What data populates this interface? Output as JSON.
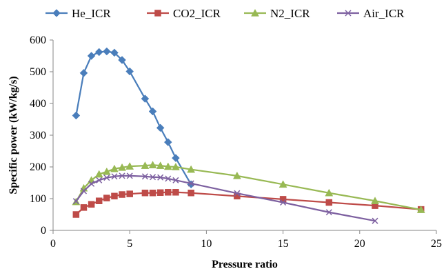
{
  "chart_data": {
    "type": "line",
    "title": "",
    "xlabel": "Pressure ratio",
    "ylabel": "Specific power (kW/kg/s)",
    "xlim": [
      0,
      25
    ],
    "ylim": [
      0,
      600
    ],
    "xticks": [
      0,
      5,
      10,
      15,
      20,
      25
    ],
    "yticks": [
      0,
      100,
      200,
      300,
      400,
      500,
      600
    ],
    "grid": false,
    "legend_position": "top",
    "series": [
      {
        "name": "He_ICR",
        "color": "#4a7ebb",
        "marker": "diamond",
        "points": [
          [
            1.5,
            362
          ],
          [
            2,
            496
          ],
          [
            2.5,
            550
          ],
          [
            3,
            562
          ],
          [
            3.5,
            564
          ],
          [
            4,
            560
          ],
          [
            4.5,
            537
          ],
          [
            5,
            501
          ],
          [
            6,
            415
          ],
          [
            6.5,
            375
          ],
          [
            7,
            323
          ],
          [
            7.5,
            278
          ],
          [
            8,
            228
          ],
          [
            9,
            145
          ]
        ]
      },
      {
        "name": "CO2_ICR",
        "color": "#be4b48",
        "marker": "square",
        "points": [
          [
            1.5,
            50
          ],
          [
            2,
            72
          ],
          [
            2.5,
            82
          ],
          [
            3,
            93
          ],
          [
            3.5,
            102
          ],
          [
            4,
            108
          ],
          [
            4.5,
            113
          ],
          [
            5,
            115
          ],
          [
            6,
            118
          ],
          [
            6.5,
            118
          ],
          [
            7,
            119
          ],
          [
            7.5,
            120
          ],
          [
            8,
            120
          ],
          [
            9,
            118
          ],
          [
            12,
            108
          ],
          [
            15,
            98
          ],
          [
            18,
            88
          ],
          [
            21,
            78
          ],
          [
            24,
            66
          ]
        ]
      },
      {
        "name": "N2_ICR",
        "color": "#98b954",
        "marker": "triangle",
        "points": [
          [
            1.5,
            90
          ],
          [
            2,
            133
          ],
          [
            2.5,
            158
          ],
          [
            3,
            177
          ],
          [
            3.5,
            185
          ],
          [
            4,
            194
          ],
          [
            4.5,
            198
          ],
          [
            5,
            202
          ],
          [
            6,
            204
          ],
          [
            6.5,
            206
          ],
          [
            7,
            204
          ],
          [
            7.5,
            201
          ],
          [
            8,
            200
          ],
          [
            9,
            192
          ],
          [
            12,
            172
          ],
          [
            15,
            145
          ],
          [
            18,
            118
          ],
          [
            21,
            93
          ],
          [
            24,
            65
          ]
        ]
      },
      {
        "name": "Air_ICR",
        "color": "#7d60a0",
        "marker": "x",
        "points": [
          [
            1.5,
            92
          ],
          [
            2,
            124
          ],
          [
            2.5,
            147
          ],
          [
            3,
            158
          ],
          [
            3.5,
            166
          ],
          [
            4,
            170
          ],
          [
            4.5,
            172
          ],
          [
            5,
            172
          ],
          [
            6,
            170
          ],
          [
            6.5,
            168
          ],
          [
            7,
            167
          ],
          [
            7.5,
            163
          ],
          [
            8,
            158
          ],
          [
            9,
            148
          ],
          [
            12,
            117
          ],
          [
            15,
            88
          ],
          [
            18,
            57
          ],
          [
            21,
            30
          ]
        ]
      }
    ]
  }
}
